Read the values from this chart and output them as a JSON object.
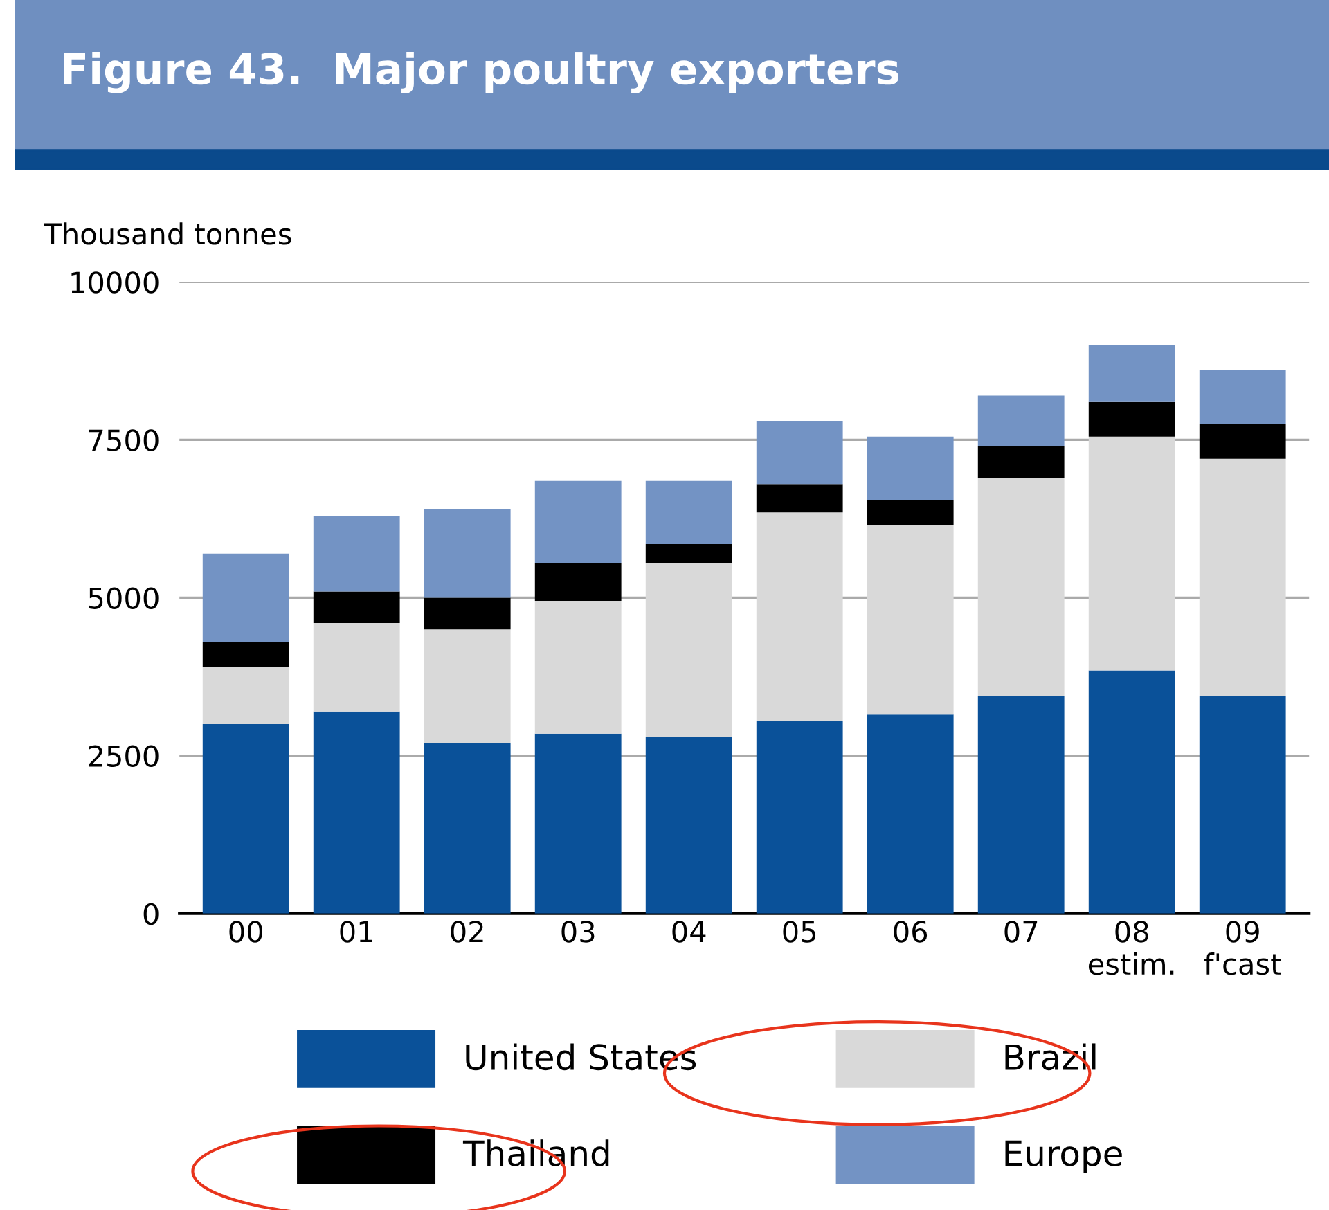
{
  "chart_data": {
    "type": "bar",
    "title": "Figure 43.  Major poultry exporters",
    "ylabel": "Thousand tonnes",
    "stacked": true,
    "categories": [
      "00",
      "01",
      "02",
      "03",
      "04",
      "05",
      "06",
      "07",
      "08\nestim.",
      "09\nf'cast"
    ],
    "series": [
      {
        "name": "United States",
        "color": "#0a5199",
        "values": [
          3000,
          3200,
          2700,
          2850,
          2800,
          3050,
          3150,
          3450,
          3850,
          3450
        ]
      },
      {
        "name": "Brazil",
        "color": "#d9d9d9",
        "values": [
          900,
          1400,
          1800,
          2100,
          2750,
          3300,
          3000,
          3450,
          3700,
          3750
        ]
      },
      {
        "name": "Thailand",
        "color": "#000000",
        "values": [
          400,
          500,
          500,
          600,
          300,
          450,
          400,
          500,
          550,
          550
        ]
      },
      {
        "name": "Europe",
        "color": "#7393c4",
        "values": [
          1400,
          1200,
          1400,
          1300,
          1000,
          1000,
          1000,
          800,
          900,
          850
        ]
      }
    ],
    "ylim": [
      0,
      10000
    ],
    "yticks": [
      0,
      2500,
      5000,
      7500,
      10000
    ],
    "grid": "y",
    "legend": "bottom"
  }
}
